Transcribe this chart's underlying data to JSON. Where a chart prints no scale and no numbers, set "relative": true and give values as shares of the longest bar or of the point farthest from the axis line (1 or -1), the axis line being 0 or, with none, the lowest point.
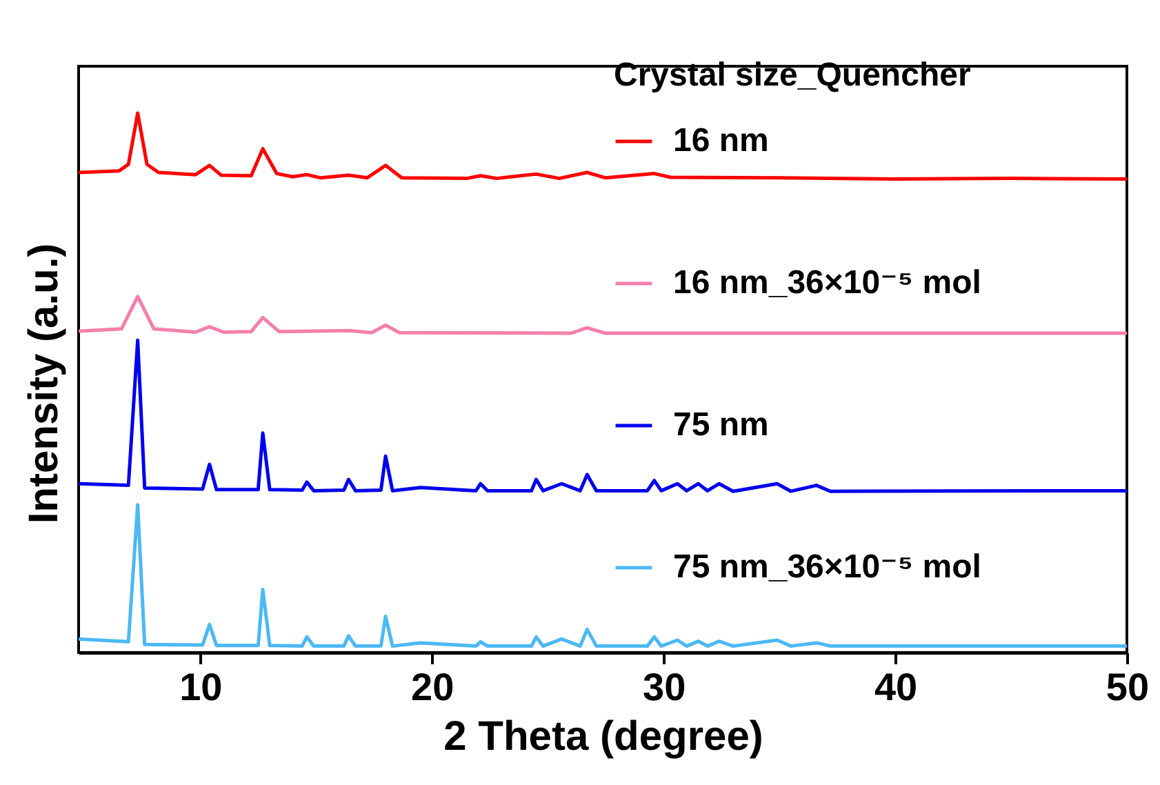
{
  "chart_data": {
    "type": "line",
    "xlabel": "2 Theta (degree)",
    "ylabel": "Intensity (a.u.)",
    "legend_title": "Crystal size_Quencher",
    "legend": "right",
    "relative": true,
    "xlim": [
      4.75,
      50
    ],
    "xticks": [
      10,
      20,
      30,
      40,
      50
    ],
    "series": [
      {
        "name": "16 nm",
        "color": "#ff0000",
        "x": [
          4.8,
          6.5,
          6.9,
          7.3,
          7.7,
          8.2,
          9.8,
          10.4,
          10.9,
          12.2,
          12.7,
          13.3,
          14.0,
          14.6,
          15.2,
          16.4,
          17.2,
          18.0,
          18.7,
          21.5,
          22.1,
          22.8,
          24.5,
          25.5,
          26.7,
          27.5,
          29.6,
          30.3,
          35.0,
          40.0,
          45.0,
          50.0
        ],
        "values": [
          0.89,
          0.893,
          0.905,
          1.0,
          0.905,
          0.89,
          0.886,
          0.903,
          0.885,
          0.884,
          0.934,
          0.888,
          0.882,
          0.886,
          0.88,
          0.885,
          0.88,
          0.903,
          0.88,
          0.879,
          0.884,
          0.879,
          0.887,
          0.879,
          0.89,
          0.88,
          0.888,
          0.881,
          0.88,
          0.878,
          0.879,
          0.878
        ]
      },
      {
        "name": "16 nm_36×10⁻⁵ mol",
        "color": "#f47fab",
        "x": [
          4.8,
          6.6,
          7.3,
          8.0,
          9.8,
          10.4,
          11.0,
          12.2,
          12.7,
          13.4,
          16.4,
          17.4,
          18.0,
          18.6,
          26.0,
          26.7,
          27.5,
          35.0,
          50.0
        ],
        "values": [
          0.596,
          0.6,
          0.66,
          0.6,
          0.594,
          0.604,
          0.594,
          0.595,
          0.621,
          0.595,
          0.597,
          0.593,
          0.607,
          0.593,
          0.592,
          0.602,
          0.592,
          0.592,
          0.592
        ]
      },
      {
        "name": "75 nm",
        "color": "#0000ee",
        "x": [
          4.8,
          6.9,
          7.3,
          7.6,
          10.1,
          10.4,
          10.7,
          12.5,
          12.7,
          13.0,
          14.4,
          14.6,
          14.9,
          16.2,
          16.4,
          16.7,
          17.8,
          18.0,
          18.3,
          19.5,
          21.9,
          22.1,
          22.4,
          24.3,
          24.5,
          24.8,
          25.6,
          26.4,
          26.7,
          27.1,
          29.3,
          29.6,
          29.9,
          30.6,
          31.0,
          31.5,
          31.9,
          32.4,
          33.0,
          34.9,
          35.5,
          36.6,
          37.2,
          50.0
        ],
        "values": [
          0.313,
          0.31,
          0.579,
          0.305,
          0.303,
          0.349,
          0.302,
          0.302,
          0.407,
          0.302,
          0.301,
          0.316,
          0.3,
          0.301,
          0.321,
          0.3,
          0.301,
          0.364,
          0.3,
          0.306,
          0.3,
          0.313,
          0.3,
          0.3,
          0.321,
          0.3,
          0.313,
          0.3,
          0.33,
          0.3,
          0.3,
          0.319,
          0.3,
          0.313,
          0.3,
          0.313,
          0.3,
          0.313,
          0.299,
          0.313,
          0.299,
          0.31,
          0.299,
          0.3
        ]
      },
      {
        "name": "75 nm_36×10⁻⁵ mol",
        "color": "#4cb8f5",
        "x": [
          4.8,
          6.9,
          7.3,
          7.6,
          10.1,
          10.4,
          10.7,
          12.5,
          12.7,
          13.0,
          14.4,
          14.6,
          14.9,
          16.2,
          16.4,
          16.7,
          17.8,
          18.0,
          18.3,
          19.5,
          21.9,
          22.1,
          22.4,
          24.3,
          24.5,
          24.8,
          25.6,
          26.4,
          26.7,
          27.1,
          29.3,
          29.6,
          29.9,
          30.6,
          31.0,
          31.5,
          31.9,
          32.4,
          33.0,
          34.9,
          35.5,
          36.6,
          37.2,
          50.0
        ],
        "values": [
          0.025,
          0.02,
          0.274,
          0.015,
          0.014,
          0.052,
          0.013,
          0.013,
          0.117,
          0.013,
          0.012,
          0.029,
          0.012,
          0.012,
          0.031,
          0.012,
          0.012,
          0.067,
          0.012,
          0.018,
          0.012,
          0.02,
          0.012,
          0.012,
          0.029,
          0.012,
          0.025,
          0.012,
          0.043,
          0.012,
          0.012,
          0.029,
          0.012,
          0.023,
          0.012,
          0.021,
          0.012,
          0.021,
          0.012,
          0.023,
          0.012,
          0.018,
          0.012,
          0.012
        ]
      }
    ]
  }
}
